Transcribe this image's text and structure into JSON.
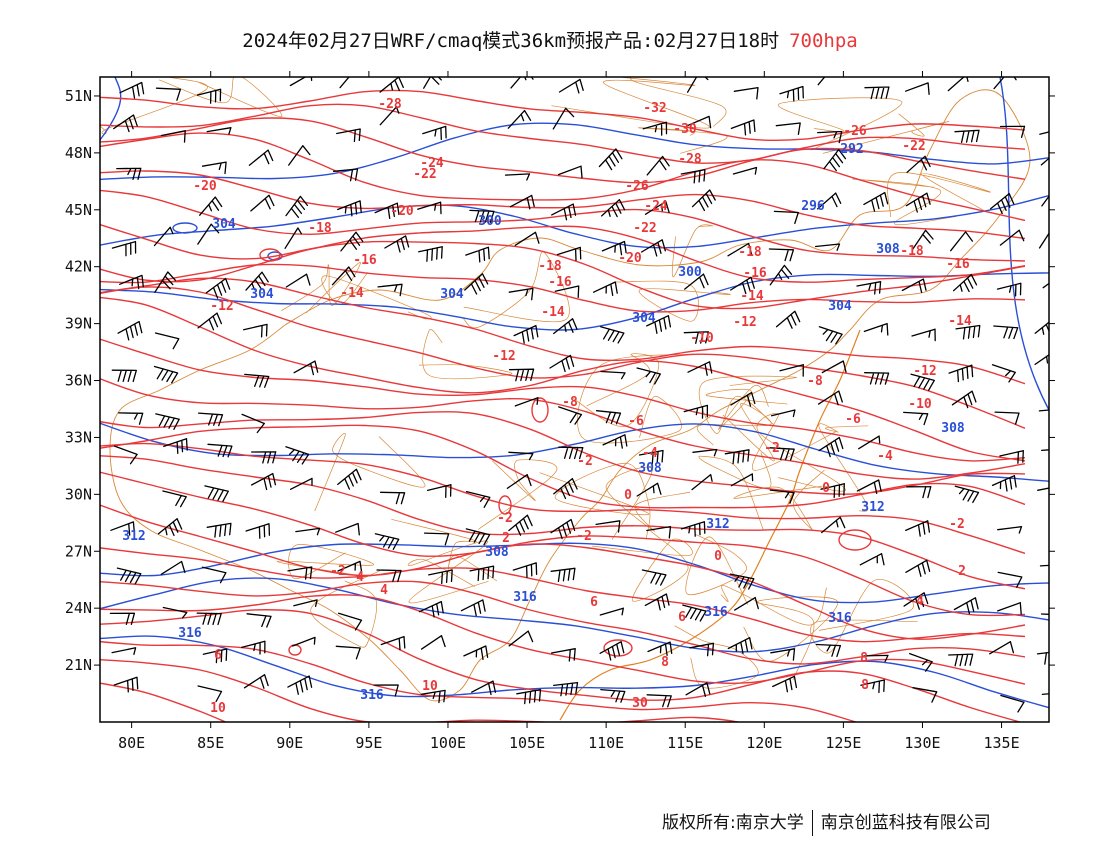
{
  "title": {
    "main": "2024年02月27日WRF/cmaq模式36km预报产品:02月27日18时",
    "level": "700hpa"
  },
  "colors": {
    "temperature_contour": "#e8383a",
    "height_contour": "#2a4fd6",
    "wind_barb": "#000000",
    "boundary": "#d9893a",
    "frame": "#000000"
  },
  "map": {
    "lon_range": [
      78,
      138
    ],
    "lat_range": [
      18,
      52
    ],
    "lon_ticks": [
      "80E",
      "85E",
      "90E",
      "95E",
      "100E",
      "105E",
      "110E",
      "115E",
      "120E",
      "125E",
      "130E",
      "135E"
    ],
    "lat_ticks": [
      "51N",
      "48N",
      "45N",
      "42N",
      "39N",
      "36N",
      "33N",
      "30N",
      "27N",
      "24N",
      "21N"
    ]
  },
  "temperature_labels": [
    "-32",
    "-30",
    "-28",
    "-28",
    "-26",
    "-26",
    "-24",
    "-24",
    "-22",
    "-22",
    "-22",
    "-20",
    "-20",
    "-20",
    "-18",
    "-18",
    "-18",
    "-18",
    "-16",
    "-16",
    "-16",
    "-16",
    "-14",
    "-14",
    "-14",
    "-14",
    "-12",
    "-12",
    "-12",
    "-12",
    "-10",
    "-10",
    "-8",
    "-8",
    "-6",
    "-6",
    "-4",
    "-4",
    "-2",
    "-2",
    "-2",
    "-2",
    "0",
    "0",
    "0",
    "2",
    "-2",
    "-2",
    "2",
    "4",
    "4",
    "4",
    "6",
    "6",
    "6",
    "8",
    "8",
    "8",
    "10",
    "10",
    "30"
  ],
  "height_labels": [
    "292",
    "296",
    "300",
    "300",
    "304",
    "304",
    "304",
    "304",
    "304",
    "308",
    "308",
    "308",
    "308",
    "312",
    "312",
    "312",
    "316",
    "316",
    "316",
    "316",
    "316"
  ],
  "footer": {
    "left": "版权所有:南京大学",
    "right": "南京创蓝科技有限公司"
  }
}
